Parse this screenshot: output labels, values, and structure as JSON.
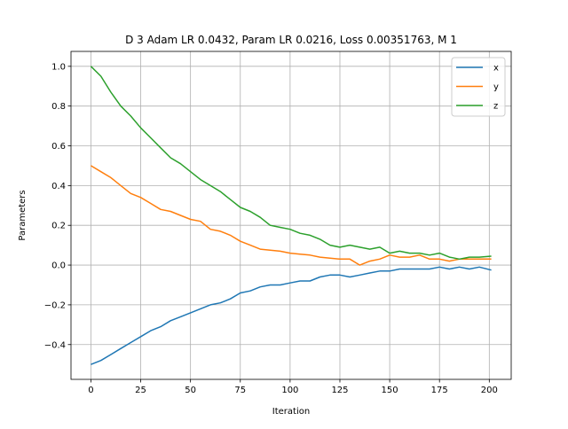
{
  "chart_data": {
    "type": "line",
    "title": "D 3 Adam LR 0.0432, Param LR 0.0216, Loss 0.00351763, M 1",
    "xlabel": "Iteration",
    "ylabel": "Parameters",
    "xlim": [
      -10,
      211
    ],
    "ylim": [
      -0.575,
      1.075
    ],
    "xticks": [
      0,
      25,
      50,
      75,
      100,
      125,
      150,
      175,
      200
    ],
    "yticks": [
      -0.4,
      -0.2,
      0.0,
      0.2,
      0.4,
      0.6,
      0.8,
      1.0
    ],
    "xtick_labels": [
      "0",
      "25",
      "50",
      "75",
      "100",
      "125",
      "150",
      "175",
      "200"
    ],
    "ytick_labels": [
      "−0.4",
      "−0.2",
      "0.0",
      "0.2",
      "0.4",
      "0.6",
      "0.8",
      "1.0"
    ],
    "grid": true,
    "legend_position": "top-right",
    "x": [
      0,
      5,
      10,
      15,
      20,
      25,
      30,
      35,
      40,
      45,
      50,
      55,
      60,
      65,
      70,
      75,
      80,
      85,
      90,
      95,
      100,
      105,
      110,
      115,
      120,
      125,
      130,
      135,
      140,
      145,
      150,
      155,
      160,
      165,
      170,
      175,
      180,
      185,
      190,
      195,
      201
    ],
    "series": [
      {
        "name": "x",
        "color": "#1f77b4",
        "values": [
          -0.5,
          -0.48,
          -0.45,
          -0.42,
          -0.39,
          -0.36,
          -0.33,
          -0.31,
          -0.28,
          -0.26,
          -0.24,
          -0.22,
          -0.2,
          -0.19,
          -0.17,
          -0.14,
          -0.13,
          -0.11,
          -0.1,
          -0.1,
          -0.09,
          -0.08,
          -0.08,
          -0.06,
          -0.05,
          -0.05,
          -0.06,
          -0.05,
          -0.04,
          -0.03,
          -0.03,
          -0.02,
          -0.02,
          -0.02,
          -0.02,
          -0.01,
          -0.02,
          -0.01,
          -0.02,
          -0.01,
          -0.025
        ]
      },
      {
        "name": "y",
        "color": "#ff7f0e",
        "values": [
          0.5,
          0.47,
          0.44,
          0.4,
          0.36,
          0.34,
          0.31,
          0.28,
          0.27,
          0.25,
          0.23,
          0.22,
          0.18,
          0.17,
          0.15,
          0.12,
          0.1,
          0.08,
          0.075,
          0.07,
          0.06,
          0.055,
          0.05,
          0.04,
          0.035,
          0.03,
          0.03,
          0.0,
          0.02,
          0.03,
          0.05,
          0.04,
          0.04,
          0.05,
          0.03,
          0.03,
          0.02,
          0.03,
          0.03,
          0.03,
          0.03
        ]
      },
      {
        "name": "z",
        "color": "#2ca02c",
        "values": [
          1.0,
          0.95,
          0.87,
          0.8,
          0.75,
          0.69,
          0.64,
          0.59,
          0.54,
          0.51,
          0.47,
          0.43,
          0.4,
          0.37,
          0.33,
          0.29,
          0.27,
          0.24,
          0.2,
          0.19,
          0.18,
          0.16,
          0.15,
          0.13,
          0.1,
          0.09,
          0.1,
          0.09,
          0.08,
          0.09,
          0.06,
          0.07,
          0.06,
          0.06,
          0.05,
          0.06,
          0.04,
          0.03,
          0.04,
          0.04,
          0.045
        ]
      }
    ]
  }
}
